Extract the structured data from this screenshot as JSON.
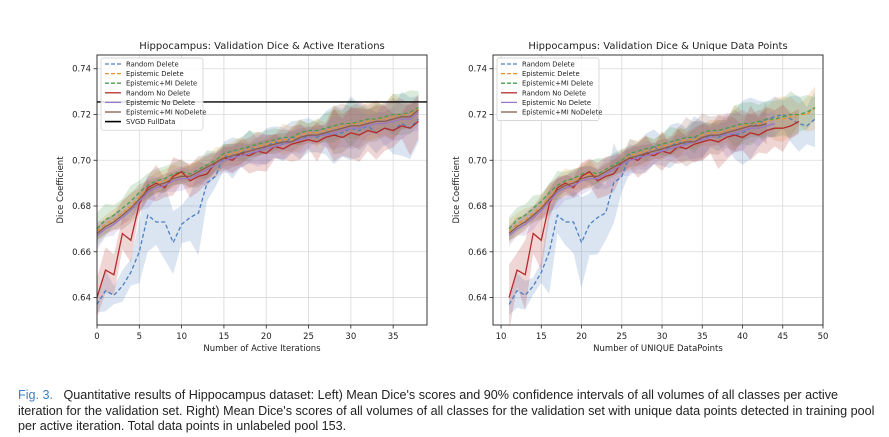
{
  "caption": {
    "label": "Fig. 3.",
    "text": "Quantitative results of Hippocampus dataset: Left) Mean Dice's scores and 90% confidence intervals of all volumes of all classes per active iteration for the validation set. Right) Mean Dice's scores of all volumes of all classes for the validation set with unique data points detected in training pool per active iteration. Total data points in unlabeled pool 153."
  },
  "colors": {
    "random_delete": "#4c7fc0",
    "epistemic_delete": "#e8922e",
    "epistemic_mi_delete": "#4a9d4a",
    "random_no_delete": "#b52b2b",
    "epistemic_no_delete": "#9a78c6",
    "epistemic_mi_nodelete": "#8c5a4a",
    "svgd_fulldata": "#000000"
  },
  "chart_data": [
    {
      "type": "line",
      "title": "Hippocampus: Validation Dice & Active Iterations",
      "xlabel": "Number of Active Iterations",
      "ylabel": "Dice Coefficient",
      "xlim": [
        0,
        39
      ],
      "ylim": [
        0.628,
        0.746
      ],
      "xticks": [
        0,
        5,
        10,
        15,
        20,
        25,
        30,
        35
      ],
      "yticks": [
        0.64,
        0.66,
        0.68,
        0.7,
        0.72,
        0.74
      ],
      "grid": true,
      "legend": "top-left",
      "hline": {
        "name": "SVGD FullData",
        "y": 0.7255
      },
      "series": [
        {
          "name": "Random Delete",
          "style": "dashed",
          "color": "#4c7fc0",
          "x": [
            0,
            1,
            2,
            3,
            4,
            5,
            6,
            7,
            8,
            9,
            10,
            11,
            12,
            13,
            14,
            15,
            16,
            17,
            18,
            19,
            20,
            21,
            22,
            23,
            24,
            25,
            26,
            27,
            28,
            29,
            30,
            31,
            32,
            33,
            34,
            35,
            36,
            37,
            38
          ],
          "y": [
            0.637,
            0.643,
            0.641,
            0.645,
            0.651,
            0.66,
            0.676,
            0.673,
            0.673,
            0.664,
            0.672,
            0.675,
            0.677,
            0.69,
            0.693,
            0.702,
            0.701,
            0.703,
            0.706,
            0.704,
            0.706,
            0.708,
            0.707,
            0.71,
            0.709,
            0.711,
            0.71,
            0.712,
            0.711,
            0.712,
            0.714,
            0.713,
            0.715,
            0.712,
            0.714,
            0.713,
            0.716,
            0.714,
            0.718
          ]
        },
        {
          "name": "Epistemic Delete",
          "style": "dashed",
          "color": "#e8922e",
          "x": [
            0,
            1,
            2,
            3,
            4,
            5,
            6,
            7,
            8,
            9,
            10,
            11,
            12,
            13,
            14,
            15,
            16,
            17,
            18,
            19,
            20,
            21,
            22,
            23,
            24,
            25,
            26,
            27,
            28,
            29,
            30,
            31,
            32,
            33,
            34,
            35,
            36,
            37,
            38
          ],
          "y": [
            0.669,
            0.672,
            0.674,
            0.677,
            0.68,
            0.684,
            0.688,
            0.69,
            0.691,
            0.693,
            0.694,
            0.693,
            0.695,
            0.697,
            0.699,
            0.702,
            0.703,
            0.704,
            0.705,
            0.706,
            0.707,
            0.708,
            0.709,
            0.709,
            0.711,
            0.712,
            0.712,
            0.713,
            0.714,
            0.715,
            0.716,
            0.716,
            0.717,
            0.718,
            0.718,
            0.719,
            0.72,
            0.72,
            0.723
          ]
        },
        {
          "name": "Epistemic+MI Delete",
          "style": "dashed",
          "color": "#4a9d4a",
          "x": [
            0,
            1,
            2,
            3,
            4,
            5,
            6,
            7,
            8,
            9,
            10,
            11,
            12,
            13,
            14,
            15,
            16,
            17,
            18,
            19,
            20,
            21,
            22,
            23,
            24,
            25,
            26,
            27,
            28,
            29,
            30,
            31,
            32,
            33,
            34,
            35,
            36,
            37,
            38
          ],
          "y": [
            0.67,
            0.674,
            0.676,
            0.679,
            0.682,
            0.686,
            0.689,
            0.691,
            0.692,
            0.694,
            0.695,
            0.694,
            0.696,
            0.698,
            0.7,
            0.703,
            0.704,
            0.705,
            0.706,
            0.707,
            0.708,
            0.709,
            0.71,
            0.71,
            0.712,
            0.713,
            0.713,
            0.714,
            0.715,
            0.716,
            0.716,
            0.717,
            0.718,
            0.718,
            0.719,
            0.72,
            0.72,
            0.721,
            0.723
          ]
        },
        {
          "name": "Random No Delete",
          "style": "solid",
          "color": "#b52b2b",
          "x": [
            0,
            1,
            2,
            3,
            4,
            5,
            6,
            7,
            8,
            9,
            10,
            11,
            12,
            13,
            14,
            15,
            16,
            17,
            18,
            19,
            20,
            21,
            22,
            23,
            24,
            25,
            26,
            27,
            28,
            29,
            30,
            31,
            32,
            33,
            34,
            35,
            36,
            37,
            38
          ],
          "y": [
            0.64,
            0.652,
            0.65,
            0.668,
            0.665,
            0.681,
            0.688,
            0.69,
            0.688,
            0.693,
            0.695,
            0.691,
            0.693,
            0.694,
            0.699,
            0.701,
            0.7,
            0.703,
            0.702,
            0.704,
            0.703,
            0.706,
            0.705,
            0.707,
            0.708,
            0.709,
            0.708,
            0.71,
            0.711,
            0.71,
            0.712,
            0.711,
            0.713,
            0.712,
            0.714,
            0.713,
            0.715,
            0.714,
            0.717
          ]
        },
        {
          "name": "Epistemic No Delete",
          "style": "solid",
          "color": "#9a78c6",
          "x": [
            0,
            1,
            2,
            3,
            4,
            5,
            6,
            7,
            8,
            9,
            10,
            11,
            12,
            13,
            14,
            15,
            16,
            17,
            18,
            19,
            20,
            21,
            22,
            23,
            24,
            25,
            26,
            27,
            28,
            29,
            30,
            31,
            32,
            33,
            34,
            35,
            36,
            37,
            38
          ],
          "y": [
            0.667,
            0.67,
            0.672,
            0.675,
            0.678,
            0.682,
            0.686,
            0.688,
            0.689,
            0.691,
            0.692,
            0.692,
            0.694,
            0.696,
            0.698,
            0.7,
            0.701,
            0.702,
            0.703,
            0.704,
            0.705,
            0.706,
            0.707,
            0.708,
            0.709,
            0.71,
            0.711,
            0.711,
            0.712,
            0.713,
            0.714,
            0.714,
            0.715,
            0.716,
            0.716,
            0.717,
            0.718,
            0.718,
            0.721
          ]
        },
        {
          "name": "Epistemic+MI NoDelete",
          "style": "solid",
          "color": "#8c5a4a",
          "x": [
            0,
            1,
            2,
            3,
            4,
            5,
            6,
            7,
            8,
            9,
            10,
            11,
            12,
            13,
            14,
            15,
            16,
            17,
            18,
            19,
            20,
            21,
            22,
            23,
            24,
            25,
            26,
            27,
            28,
            29,
            30,
            31,
            32,
            33,
            34,
            35,
            36,
            37,
            38
          ],
          "y": [
            0.668,
            0.671,
            0.673,
            0.676,
            0.679,
            0.683,
            0.687,
            0.689,
            0.69,
            0.692,
            0.693,
            0.693,
            0.695,
            0.697,
            0.699,
            0.701,
            0.702,
            0.703,
            0.704,
            0.705,
            0.706,
            0.707,
            0.708,
            0.708,
            0.71,
            0.711,
            0.711,
            0.712,
            0.713,
            0.714,
            0.715,
            0.715,
            0.716,
            0.717,
            0.717,
            0.718,
            0.719,
            0.719,
            0.722
          ]
        }
      ]
    },
    {
      "type": "line",
      "title": "Hippocampus: Validation Dice & Unique Data Points",
      "xlabel": "Number of UNIQUE DataPoints",
      "ylabel": "Dice Coefficient",
      "xlim": [
        9,
        50
      ],
      "ylim": [
        0.628,
        0.746
      ],
      "xticks": [
        10,
        15,
        20,
        25,
        30,
        35,
        40,
        45,
        50
      ],
      "yticks": [
        0.64,
        0.66,
        0.68,
        0.7,
        0.72,
        0.74
      ],
      "grid": true,
      "legend": "top-left",
      "series": [
        {
          "name": "Random Delete",
          "style": "dashed",
          "color": "#4c7fc0",
          "x": [
            11,
            12,
            13,
            14,
            15,
            16,
            17,
            18,
            19,
            20,
            21,
            22,
            23,
            24,
            25,
            26,
            27,
            28,
            29,
            30,
            31,
            32,
            33,
            34,
            35,
            36,
            37,
            38,
            39,
            40,
            41,
            42,
            43,
            44,
            45,
            46,
            47,
            48,
            49
          ],
          "y": [
            0.637,
            0.643,
            0.641,
            0.645,
            0.651,
            0.66,
            0.676,
            0.673,
            0.673,
            0.664,
            0.672,
            0.675,
            0.677,
            0.69,
            0.693,
            0.702,
            0.701,
            0.703,
            0.706,
            0.704,
            0.706,
            0.708,
            0.707,
            0.71,
            0.709,
            0.711,
            0.71,
            0.712,
            0.711,
            0.712,
            0.714,
            0.716,
            0.718,
            0.719,
            0.72,
            0.718,
            0.716,
            0.715,
            0.718
          ]
        },
        {
          "name": "Epistemic Delete",
          "style": "dashed",
          "color": "#e8922e",
          "x": [
            11,
            12,
            13,
            14,
            15,
            16,
            17,
            18,
            19,
            20,
            21,
            22,
            23,
            24,
            25,
            26,
            27,
            28,
            29,
            30,
            31,
            32,
            33,
            34,
            35,
            36,
            37,
            38,
            39,
            40,
            41,
            42,
            43,
            44,
            45,
            46,
            47,
            48,
            49
          ],
          "y": [
            0.669,
            0.672,
            0.674,
            0.677,
            0.68,
            0.684,
            0.688,
            0.69,
            0.691,
            0.693,
            0.694,
            0.693,
            0.695,
            0.697,
            0.699,
            0.702,
            0.703,
            0.704,
            0.705,
            0.706,
            0.707,
            0.708,
            0.709,
            0.709,
            0.711,
            0.712,
            0.712,
            0.713,
            0.714,
            0.715,
            0.716,
            0.716,
            0.717,
            0.718,
            0.718,
            0.719,
            0.72,
            0.72,
            0.723
          ]
        },
        {
          "name": "Epistemic+MI Delete",
          "style": "dashed",
          "color": "#4a9d4a",
          "x": [
            11,
            12,
            13,
            14,
            15,
            16,
            17,
            18,
            19,
            20,
            21,
            22,
            23,
            24,
            25,
            26,
            27,
            28,
            29,
            30,
            31,
            32,
            33,
            34,
            35,
            36,
            37,
            38,
            39,
            40,
            41,
            42,
            43,
            44,
            45,
            46,
            47,
            48,
            49
          ],
          "y": [
            0.67,
            0.674,
            0.676,
            0.679,
            0.682,
            0.686,
            0.689,
            0.691,
            0.692,
            0.694,
            0.695,
            0.694,
            0.696,
            0.698,
            0.7,
            0.703,
            0.704,
            0.705,
            0.706,
            0.707,
            0.708,
            0.709,
            0.71,
            0.71,
            0.712,
            0.713,
            0.713,
            0.714,
            0.715,
            0.716,
            0.716,
            0.717,
            0.718,
            0.718,
            0.719,
            0.72,
            0.72,
            0.721,
            0.723
          ]
        },
        {
          "name": "Random No Delete",
          "style": "solid",
          "color": "#b52b2b",
          "x": [
            11,
            12,
            13,
            14,
            15,
            16,
            17,
            18,
            19,
            20,
            21,
            22,
            23,
            24,
            25,
            26,
            27,
            28,
            29,
            30,
            31,
            32,
            33,
            34,
            35,
            36,
            37,
            38,
            39,
            40,
            41,
            42,
            43,
            44,
            45,
            46,
            47
          ],
          "y": [
            0.64,
            0.652,
            0.65,
            0.668,
            0.665,
            0.681,
            0.688,
            0.69,
            0.688,
            0.693,
            0.695,
            0.691,
            0.693,
            0.694,
            0.699,
            0.701,
            0.7,
            0.703,
            0.702,
            0.704,
            0.703,
            0.706,
            0.705,
            0.707,
            0.708,
            0.709,
            0.708,
            0.71,
            0.711,
            0.71,
            0.712,
            0.711,
            0.713,
            0.714,
            0.714,
            0.715,
            0.717
          ]
        },
        {
          "name": "Epistemic No Delete",
          "style": "solid",
          "color": "#9a78c6",
          "x": [
            11,
            12,
            13,
            14,
            15,
            16,
            17,
            18,
            19,
            20,
            21,
            22,
            23,
            24,
            25,
            26,
            27,
            28,
            29,
            30,
            31,
            32,
            33,
            34,
            35,
            36,
            37,
            38,
            39,
            40,
            41,
            42,
            43,
            44
          ],
          "y": [
            0.667,
            0.67,
            0.672,
            0.675,
            0.678,
            0.682,
            0.686,
            0.688,
            0.689,
            0.691,
            0.692,
            0.692,
            0.694,
            0.696,
            0.698,
            0.7,
            0.701,
            0.702,
            0.703,
            0.704,
            0.705,
            0.706,
            0.707,
            0.708,
            0.709,
            0.71,
            0.711,
            0.711,
            0.712,
            0.713,
            0.714,
            0.714,
            0.715,
            0.716
          ]
        },
        {
          "name": "Epistemic+MI NoDelete",
          "style": "solid",
          "color": "#8c5a4a",
          "x": [
            11,
            12,
            13,
            14,
            15,
            16,
            17,
            18,
            19,
            20,
            21,
            22,
            23,
            24,
            25,
            26,
            27,
            28,
            29,
            30,
            31,
            32,
            33,
            34,
            35,
            36,
            37,
            38,
            39,
            40,
            41,
            42,
            43
          ],
          "y": [
            0.668,
            0.671,
            0.673,
            0.676,
            0.679,
            0.683,
            0.687,
            0.689,
            0.69,
            0.692,
            0.693,
            0.693,
            0.695,
            0.697,
            0.699,
            0.701,
            0.702,
            0.703,
            0.704,
            0.705,
            0.706,
            0.707,
            0.708,
            0.708,
            0.71,
            0.711,
            0.711,
            0.712,
            0.713,
            0.714,
            0.715,
            0.715,
            0.716
          ]
        }
      ]
    }
  ]
}
